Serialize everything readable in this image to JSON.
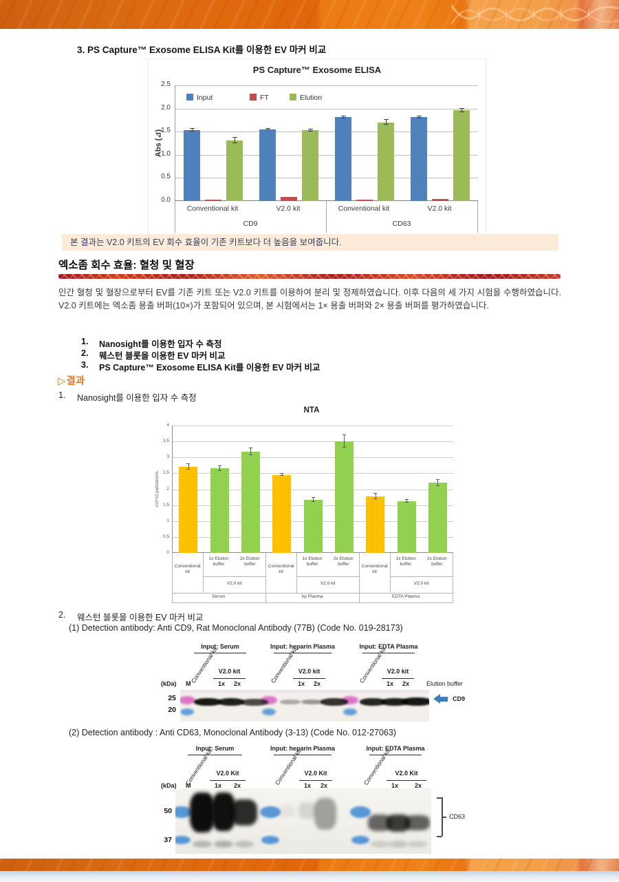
{
  "doc": {
    "section3_heading": "3.  PS Capture™ Exosome ELISA Kit를 이용한 EV 마커 비교",
    "note": "본 결과는 V2.0 키트의 EV 회수 효율이 기존 키트보다 더 높음을 보여줍니다.",
    "section_heading": "엑소좀 회수 효율: 혈청 및 혈장",
    "intro_paragraph": "인간 혈청 및 혈장으로부터 EV를 기존 키트 또는 V2.0 키트를 이용하여 분리 및 정제하였습니다. 이후 다음의 세 가지 시험을 수행하였습니다. V2.0 키트에는 엑소좀 용출 버퍼(10×)가 포함되어 있으며, 본 시험에서는 1× 용출 버퍼와 2× 용출 버퍼를 평가하였습니다.",
    "test_list": [
      {
        "num": "1.",
        "label": "Nanosight를 이용한 입자 수 측정"
      },
      {
        "num": "2.",
        "label": "웨스턴 블롯을 이용한 EV 마커 비교"
      },
      {
        "num": "3.",
        "label": "PS Capture™ Exosome ELISA Kit를 이용한 EV 마커 비교"
      }
    ],
    "results_marker": "▷",
    "results_label": "결과",
    "result_item1": {
      "num": "1.",
      "label": "Nanosight를 이용한 입자 수 측정"
    },
    "result_item2": {
      "num": "2.",
      "label": "웨스턴 블롯을 이용한 EV 마커 비교"
    }
  },
  "chart_data": [
    {
      "type": "bar",
      "title": "PS Capture™ Exosome ELISA",
      "xlabel": "",
      "ylabel": "Abs (⊿)",
      "ylim": [
        0,
        2.5
      ],
      "ytick_step": 0.5,
      "grid": true,
      "legend_position": "top-left-inside",
      "legend": [
        {
          "label": "Input",
          "color": "#4f81bd"
        },
        {
          "label": "FT",
          "color": "#c0504d"
        },
        {
          "label": "Elution",
          "color": "#9bbb59"
        }
      ],
      "groups": [
        {
          "kit": "Conventional kit",
          "marker": "CD9",
          "values": [
            1.54,
            0.03,
            1.31
          ],
          "errors": [
            0.03,
            0.01,
            0.06
          ]
        },
        {
          "kit": "V2.0 kit",
          "marker": "CD9",
          "values": [
            1.55,
            0.09,
            1.53
          ],
          "errors": [
            0.02,
            0.01,
            0.02
          ]
        },
        {
          "kit": "Conventional kit",
          "marker": "CD63",
          "values": [
            1.81,
            0.03,
            1.7
          ],
          "errors": [
            0.02,
            0.01,
            0.05
          ]
        },
        {
          "kit": "V2.0 kit",
          "marker": "CD63",
          "values": [
            1.81,
            0.05,
            1.96
          ],
          "errors": [
            0.02,
            0.01,
            0.04
          ]
        }
      ],
      "markers": [
        "CD9",
        "CD63"
      ]
    },
    {
      "type": "bar",
      "title": "NTA",
      "xlabel": "",
      "ylabel": "x10^10 particles/mL",
      "ylim": [
        0,
        4
      ],
      "ytick_step": 0.5,
      "grid": true,
      "bar_colors": [
        "#ffc000",
        "#92d050",
        "#92d050",
        "#ffc000",
        "#92d050",
        "#92d050",
        "#ffc000",
        "#92d050",
        "#92d050"
      ],
      "values": [
        2.7,
        2.65,
        3.18,
        2.45,
        1.67,
        3.5,
        1.77,
        1.62,
        2.2
      ],
      "errors": [
        0.08,
        0.08,
        0.1,
        0.03,
        0.07,
        0.2,
        0.08,
        0.05,
        0.1
      ],
      "axis": {
        "elution_labels": [
          "1x Elution buffer",
          "2x Elution buffer"
        ],
        "conv_label": "Conventional kit",
        "kit_label": "V2.0 kit",
        "samples": [
          "Serum",
          "hp Plasma",
          "EDTA Plasma"
        ]
      }
    }
  ],
  "western_blots": [
    {
      "caption": "(1) Detection antibody: Anti CD9, Rat Monoclonal Antibody (77B) (Code No. 019-28173)",
      "kda_unit": "(kDa)",
      "marker_lane": "M",
      "right_label": "Elution buffer",
      "panels": [
        {
          "input": "Input: Serum",
          "conv": "Conventional kit",
          "kit": "V2.0 kit",
          "lanes": [
            "1x",
            "2x"
          ]
        },
        {
          "input": "Input: heparin Plasma",
          "conv": "Conventional kit",
          "kit": "V2.0 kit",
          "lanes": [
            "1x",
            "2x"
          ]
        },
        {
          "input": "Input: EDTA Plasma",
          "conv": "Conventional kit",
          "kit": "V2.0 kit",
          "lanes": [
            "1x",
            "2x"
          ]
        }
      ],
      "mw_markers": [
        "25",
        "20"
      ],
      "marker_colors": [
        "#d95fc2",
        "#4a8fd2"
      ],
      "annotation": "CD9",
      "band_alphas": [
        0.93,
        0.9,
        0.72,
        0.3,
        0.38,
        0.82,
        0.88,
        0.9,
        0.93
      ]
    },
    {
      "caption": "(2) Detection antibody : Anti CD63, Monoclonal Antibody (3-13) (Code No. 012-27063)",
      "kda_unit": "(kDa)",
      "marker_lane": "M",
      "panels": [
        {
          "input": "Input: Serum",
          "conv": "Conventional kit",
          "kit": "V2.0 Kit",
          "lanes": [
            "1x",
            "2x"
          ]
        },
        {
          "input": "Input: heparin Plasma",
          "conv": "Conventional kit",
          "kit": "V2.0 Kit",
          "lanes": [
            "1x",
            "2x"
          ]
        },
        {
          "input": "Input: EDTA Plasma",
          "conv": "Conventional kit",
          "kit": "V2.0 Kit",
          "lanes": [
            "1x",
            "2x"
          ]
        }
      ],
      "mw_markers": [
        "50",
        "37"
      ],
      "marker_colors": [
        "#3f88d4",
        "#3f88d4"
      ],
      "annotation": "CD63",
      "band_alphas": [
        0.98,
        0.97,
        0.85,
        0.05,
        0.12,
        0.35,
        0.6,
        0.78,
        0.62
      ],
      "sub_band_alphas": [
        0.25,
        0.28,
        0.2,
        0,
        0,
        0,
        0.14,
        0.18,
        0.14
      ]
    }
  ],
  "colors": {
    "accent_orange": "#e87722",
    "note_bg": "#fdebd9",
    "red_rule": "#b02318",
    "annotation_arrow_blue": "#3c7ebf"
  }
}
